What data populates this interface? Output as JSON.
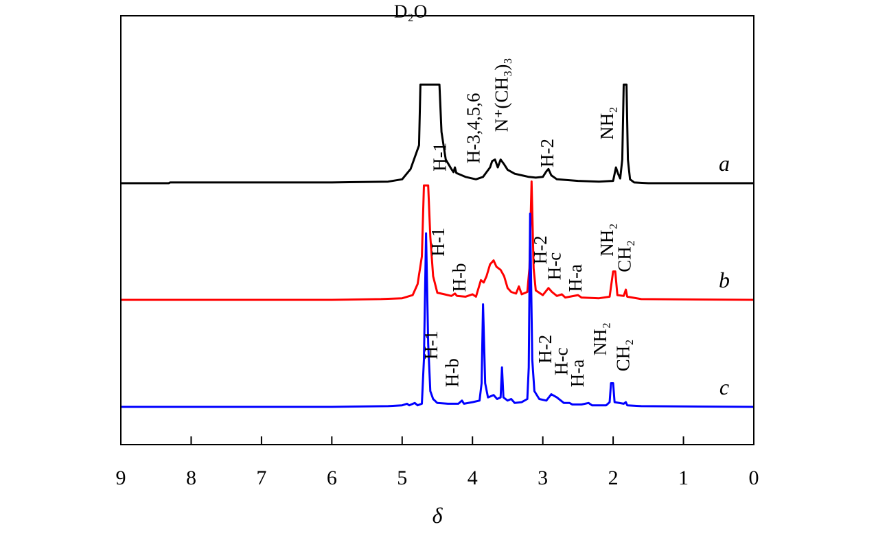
{
  "chart_data": {
    "type": "line",
    "xlabel": "δ",
    "ylabel": "",
    "xlim": [
      9,
      0
    ],
    "x_reversed": true,
    "grid": false,
    "x_ticks": [
      "9",
      "8",
      "7",
      "6",
      "5",
      "4",
      "3",
      "2",
      "1",
      "0"
    ],
    "series": [
      {
        "name": "a",
        "color": "#000000",
        "baseline": 0.0,
        "points": [
          [
            9.0,
            0.0
          ],
          [
            8.32,
            0.0
          ],
          [
            8.3,
            0.01
          ],
          [
            6.0,
            0.01
          ],
          [
            5.2,
            0.02
          ],
          [
            5.0,
            0.05
          ],
          [
            4.88,
            0.18
          ],
          [
            4.8,
            0.38
          ],
          [
            4.76,
            0.48
          ],
          [
            4.74,
            1.25
          ],
          [
            4.68,
            1.25
          ],
          [
            4.64,
            1.25
          ],
          [
            4.6,
            1.25
          ],
          [
            4.55,
            1.25
          ],
          [
            4.5,
            1.25
          ],
          [
            4.47,
            1.25
          ],
          [
            4.44,
            0.65
          ],
          [
            4.38,
            0.3
          ],
          [
            4.3,
            0.18
          ],
          [
            4.27,
            0.14
          ],
          [
            4.25,
            0.2
          ],
          [
            4.23,
            0.13
          ],
          [
            4.1,
            0.08
          ],
          [
            3.95,
            0.05
          ],
          [
            3.85,
            0.08
          ],
          [
            3.8,
            0.14
          ],
          [
            3.75,
            0.2
          ],
          [
            3.72,
            0.28
          ],
          [
            3.68,
            0.3
          ],
          [
            3.64,
            0.2
          ],
          [
            3.6,
            0.3
          ],
          [
            3.55,
            0.24
          ],
          [
            3.5,
            0.17
          ],
          [
            3.4,
            0.12
          ],
          [
            3.3,
            0.1
          ],
          [
            3.2,
            0.08
          ],
          [
            3.1,
            0.07
          ],
          [
            3.0,
            0.08
          ],
          [
            2.95,
            0.15
          ],
          [
            2.92,
            0.18
          ],
          [
            2.88,
            0.1
          ],
          [
            2.8,
            0.05
          ],
          [
            2.5,
            0.03
          ],
          [
            2.2,
            0.02
          ],
          [
            2.0,
            0.03
          ],
          [
            1.96,
            0.2
          ],
          [
            1.93,
            0.12
          ],
          [
            1.9,
            0.06
          ],
          [
            1.87,
            0.3
          ],
          [
            1.85,
            1.25
          ],
          [
            1.83,
            1.25
          ],
          [
            1.81,
            1.25
          ],
          [
            1.79,
            0.3
          ],
          [
            1.76,
            0.05
          ],
          [
            1.7,
            0.01
          ],
          [
            1.5,
            0.0
          ],
          [
            1.0,
            0.0
          ],
          [
            0.0,
            0.0
          ]
        ]
      },
      {
        "name": "b",
        "color": "#ff0000",
        "baseline": 0.0,
        "points": [
          [
            9.0,
            0.0
          ],
          [
            7.0,
            0.0
          ],
          [
            6.0,
            0.0
          ],
          [
            5.3,
            0.01
          ],
          [
            5.0,
            0.02
          ],
          [
            4.85,
            0.06
          ],
          [
            4.78,
            0.2
          ],
          [
            4.72,
            0.55
          ],
          [
            4.69,
            1.45
          ],
          [
            4.66,
            1.45
          ],
          [
            4.63,
            1.45
          ],
          [
            4.6,
            0.8
          ],
          [
            4.56,
            0.3
          ],
          [
            4.5,
            0.09
          ],
          [
            4.4,
            0.07
          ],
          [
            4.3,
            0.05
          ],
          [
            4.25,
            0.08
          ],
          [
            4.22,
            0.05
          ],
          [
            4.1,
            0.04
          ],
          [
            4.0,
            0.07
          ],
          [
            3.95,
            0.04
          ],
          [
            3.88,
            0.25
          ],
          [
            3.84,
            0.22
          ],
          [
            3.8,
            0.3
          ],
          [
            3.75,
            0.45
          ],
          [
            3.7,
            0.5
          ],
          [
            3.66,
            0.42
          ],
          [
            3.6,
            0.38
          ],
          [
            3.55,
            0.3
          ],
          [
            3.5,
            0.15
          ],
          [
            3.45,
            0.1
          ],
          [
            3.38,
            0.08
          ],
          [
            3.34,
            0.17
          ],
          [
            3.3,
            0.07
          ],
          [
            3.22,
            0.1
          ],
          [
            3.19,
            0.4
          ],
          [
            3.16,
            1.5
          ],
          [
            3.13,
            0.4
          ],
          [
            3.1,
            0.12
          ],
          [
            3.0,
            0.06
          ],
          [
            2.92,
            0.15
          ],
          [
            2.87,
            0.1
          ],
          [
            2.8,
            0.05
          ],
          [
            2.73,
            0.07
          ],
          [
            2.68,
            0.03
          ],
          [
            2.5,
            0.06
          ],
          [
            2.45,
            0.03
          ],
          [
            2.2,
            0.02
          ],
          [
            2.05,
            0.04
          ],
          [
            2.0,
            0.36
          ],
          [
            1.97,
            0.36
          ],
          [
            1.94,
            0.06
          ],
          [
            1.85,
            0.05
          ],
          [
            1.82,
            0.13
          ],
          [
            1.8,
            0.04
          ],
          [
            1.6,
            0.01
          ],
          [
            0.0,
            0.0
          ]
        ]
      },
      {
        "name": "c",
        "color": "#0000ff",
        "baseline": 0.0,
        "points": [
          [
            9.0,
            0.0
          ],
          [
            7.0,
            0.0
          ],
          [
            6.0,
            0.0
          ],
          [
            5.2,
            0.01
          ],
          [
            5.0,
            0.02
          ],
          [
            4.93,
            0.04
          ],
          [
            4.9,
            0.02
          ],
          [
            4.82,
            0.05
          ],
          [
            4.78,
            0.02
          ],
          [
            4.72,
            0.04
          ],
          [
            4.69,
            0.6
          ],
          [
            4.66,
            2.2
          ],
          [
            4.63,
            0.8
          ],
          [
            4.6,
            0.2
          ],
          [
            4.56,
            0.1
          ],
          [
            4.5,
            0.05
          ],
          [
            4.35,
            0.04
          ],
          [
            4.2,
            0.04
          ],
          [
            4.15,
            0.08
          ],
          [
            4.12,
            0.04
          ],
          [
            4.0,
            0.06
          ],
          [
            3.9,
            0.08
          ],
          [
            3.87,
            0.3
          ],
          [
            3.85,
            1.3
          ],
          [
            3.82,
            0.3
          ],
          [
            3.78,
            0.12
          ],
          [
            3.7,
            0.15
          ],
          [
            3.65,
            0.1
          ],
          [
            3.6,
            0.12
          ],
          [
            3.58,
            0.5
          ],
          [
            3.56,
            0.12
          ],
          [
            3.5,
            0.08
          ],
          [
            3.45,
            0.1
          ],
          [
            3.4,
            0.05
          ],
          [
            3.3,
            0.06
          ],
          [
            3.22,
            0.1
          ],
          [
            3.2,
            0.5
          ],
          [
            3.18,
            2.45
          ],
          [
            3.15,
            0.6
          ],
          [
            3.12,
            0.2
          ],
          [
            3.05,
            0.1
          ],
          [
            2.95,
            0.08
          ],
          [
            2.88,
            0.16
          ],
          [
            2.8,
            0.12
          ],
          [
            2.7,
            0.05
          ],
          [
            2.62,
            0.05
          ],
          [
            2.58,
            0.03
          ],
          [
            2.45,
            0.03
          ],
          [
            2.35,
            0.05
          ],
          [
            2.3,
            0.02
          ],
          [
            2.1,
            0.02
          ],
          [
            2.05,
            0.06
          ],
          [
            2.03,
            0.3
          ],
          [
            2.0,
            0.3
          ],
          [
            1.98,
            0.06
          ],
          [
            1.85,
            0.04
          ],
          [
            1.82,
            0.06
          ],
          [
            1.8,
            0.02
          ],
          [
            1.6,
            0.01
          ],
          [
            0.0,
            0.0
          ]
        ]
      }
    ],
    "annotations": [
      {
        "text": "D₂O",
        "x": 4.88,
        "series": "a",
        "dy": 2.1,
        "rotate": 0
      },
      {
        "text": "H-1",
        "x": 4.38,
        "series": "a",
        "dy": 0.15,
        "rotate": -90
      },
      {
        "text": "H-3,4,5,6",
        "x": 3.9,
        "series": "a",
        "dy": 0.25,
        "rotate": -90
      },
      {
        "text": "N⁺(CH₃)₃",
        "x": 3.5,
        "series": "a",
        "dy": 0.65,
        "rotate": -90
      },
      {
        "text": "H-2",
        "x": 2.85,
        "series": "a",
        "dy": 0.2,
        "rotate": -90
      },
      {
        "text": "NH₂",
        "x": 2.0,
        "series": "a",
        "dy": 0.55,
        "rotate": -90
      },
      {
        "text": "H-1",
        "x": 4.4,
        "series": "b",
        "dy": 0.55,
        "rotate": -90
      },
      {
        "text": "H-b",
        "x": 4.1,
        "series": "b",
        "dy": 0.1,
        "rotate": -90
      },
      {
        "text": "H-2",
        "x": 2.95,
        "series": "b",
        "dy": 0.45,
        "rotate": -90
      },
      {
        "text": "H-c",
        "x": 2.75,
        "series": "b",
        "dy": 0.25,
        "rotate": -90
      },
      {
        "text": "H-a",
        "x": 2.45,
        "series": "b",
        "dy": 0.1,
        "rotate": -90
      },
      {
        "text": "NH₂",
        "x": 2.0,
        "series": "b",
        "dy": 0.55,
        "rotate": -90
      },
      {
        "text": "CH₂",
        "x": 1.75,
        "series": "b",
        "dy": 0.35,
        "rotate": -90
      },
      {
        "text": "H-1",
        "x": 4.5,
        "series": "c",
        "dy": 0.6,
        "rotate": -90
      },
      {
        "text": "H-b",
        "x": 4.2,
        "series": "c",
        "dy": 0.25,
        "rotate": -90
      },
      {
        "text": "H-2",
        "x": 2.88,
        "series": "c",
        "dy": 0.55,
        "rotate": -90
      },
      {
        "text": "H-c",
        "x": 2.65,
        "series": "c",
        "dy": 0.4,
        "rotate": -90
      },
      {
        "text": "H-a",
        "x": 2.42,
        "series": "c",
        "dy": 0.25,
        "rotate": -90
      },
      {
        "text": "NH₂",
        "x": 2.1,
        "series": "c",
        "dy": 0.65,
        "rotate": -90
      },
      {
        "text": "CH₂",
        "x": 1.77,
        "series": "c",
        "dy": 0.45,
        "rotate": -90
      }
    ]
  }
}
